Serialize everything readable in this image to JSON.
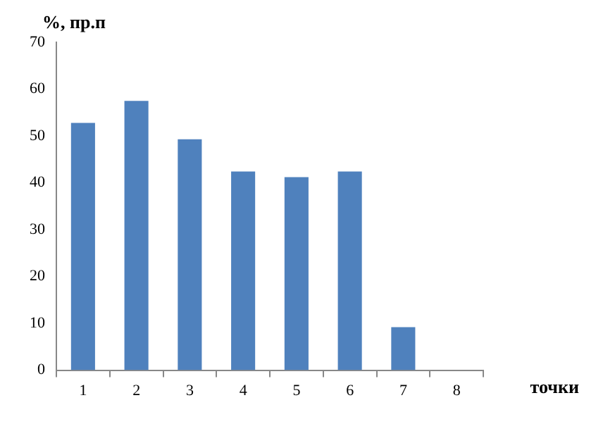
{
  "chart_data": {
    "type": "bar",
    "ylabel": "%, пр.п",
    "xlabel": "точки",
    "categories": [
      "1",
      "2",
      "3",
      "4",
      "5",
      "6",
      "7",
      "8"
    ],
    "values": [
      52.8,
      57.5,
      49.3,
      42.4,
      41.2,
      42.4,
      9.2,
      0
    ],
    "color": "#4f81bd",
    "ylim": [
      0,
      70
    ],
    "yticks": [
      0,
      10,
      20,
      30,
      40,
      50,
      60,
      70
    ]
  }
}
